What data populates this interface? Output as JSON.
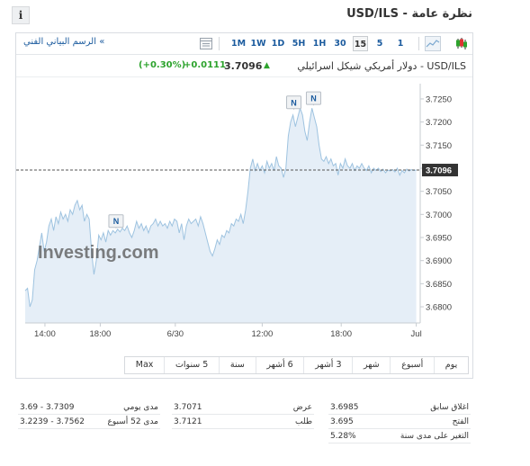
{
  "header": {
    "title": "نظرة عامة - USD/ILS",
    "info_symbol": "i"
  },
  "toolbar": {
    "advanced_chart_label": "الرسم البياني الفني",
    "advanced_chart_chevron": "»",
    "timeframes": [
      "1M",
      "1W",
      "1D",
      "5H",
      "1H",
      "30",
      "15",
      "5",
      "1"
    ],
    "active_timeframe": "15",
    "icons": [
      "table-icon",
      "area-chart-icon",
      "candlestick-icon"
    ]
  },
  "quote": {
    "name": "USD/ILS - دولار أمريكي شيكل اسرائيلي",
    "price": "3.7096",
    "change": "+0.0111",
    "change_pct": "(+0.30%)",
    "direction": "up",
    "up_color": "#2da32d"
  },
  "chart_data": {
    "type": "area",
    "title": "",
    "xlabel": "",
    "ylabel": "",
    "ylim": [
      3.6765,
      3.7283
    ],
    "xlim": [
      0,
      100
    ],
    "x_ticks": [
      {
        "label": "14:00",
        "x": 5
      },
      {
        "label": "18:00",
        "x": 19
      },
      {
        "label": "6/30",
        "x": 38
      },
      {
        "label": "12:00",
        "x": 60
      },
      {
        "label": "18:00",
        "x": 80
      },
      {
        "label": "Jul",
        "x": 99
      }
    ],
    "y_ticks": [
      "3.7250",
      "3.7200",
      "3.7150",
      "3.7100",
      "3.7050",
      "3.7000",
      "3.6950",
      "3.6900",
      "3.6850",
      "3.6800"
    ],
    "current_value": 3.7096,
    "current_label": "3.7096",
    "line_color": "#9ec3e0",
    "fill_color": "#e5eef7",
    "markers": [
      {
        "label": "N",
        "x": 23,
        "y": 3.697
      },
      {
        "label": "N",
        "x": 68,
        "y": 3.7227
      },
      {
        "label": "N",
        "x": 73,
        "y": 3.7236
      }
    ],
    "watermark": "Investing.com",
    "series": [
      {
        "values": [
          [
            0,
            3.6835
          ],
          [
            0.6,
            3.684
          ],
          [
            1.2,
            3.68
          ],
          [
            1.8,
            3.6815
          ],
          [
            2.4,
            3.688
          ],
          [
            3.0,
            3.69
          ],
          [
            3.6,
            3.693
          ],
          [
            4.2,
            3.696
          ],
          [
            4.8,
            3.692
          ],
          [
            5.4,
            3.694
          ],
          [
            6.0,
            3.6975
          ],
          [
            6.6,
            3.699
          ],
          [
            7.2,
            3.6965
          ],
          [
            7.8,
            3.6995
          ],
          [
            8.4,
            3.698
          ],
          [
            9.0,
            3.7005
          ],
          [
            9.6,
            3.699
          ],
          [
            10.2,
            3.7
          ],
          [
            10.8,
            3.6985
          ],
          [
            11.4,
            3.701
          ],
          [
            12.0,
            3.7
          ],
          [
            12.6,
            3.702
          ],
          [
            13.2,
            3.703
          ],
          [
            13.8,
            3.701
          ],
          [
            14.4,
            3.702
          ],
          [
            15.0,
            3.6985
          ],
          [
            15.6,
            3.7
          ],
          [
            16.2,
            3.699
          ],
          [
            16.8,
            3.692
          ],
          [
            17.4,
            3.687
          ],
          [
            18.0,
            3.69
          ],
          [
            18.6,
            3.6955
          ],
          [
            19.2,
            3.6945
          ],
          [
            19.8,
            3.696
          ],
          [
            20.4,
            3.694
          ],
          [
            21.0,
            3.6965
          ],
          [
            21.6,
            3.6955
          ],
          [
            22.2,
            3.6965
          ],
          [
            22.8,
            3.696
          ],
          [
            23.4,
            3.6968
          ],
          [
            24.0,
            3.6962
          ],
          [
            24.6,
            3.697
          ],
          [
            25.2,
            3.6965
          ],
          [
            25.8,
            3.6975
          ],
          [
            26.4,
            3.696
          ],
          [
            27.0,
            3.695
          ],
          [
            27.6,
            3.6965
          ],
          [
            28.2,
            3.6985
          ],
          [
            28.8,
            3.697
          ],
          [
            29.4,
            3.698
          ],
          [
            30.0,
            3.6965
          ],
          [
            30.6,
            3.6975
          ],
          [
            31.2,
            3.696
          ],
          [
            31.8,
            3.6975
          ],
          [
            32.4,
            3.698
          ],
          [
            33.0,
            3.699
          ],
          [
            33.6,
            3.6975
          ],
          [
            34.2,
            3.6985
          ],
          [
            34.8,
            3.6975
          ],
          [
            35.4,
            3.698
          ],
          [
            36.0,
            3.697
          ],
          [
            36.6,
            3.6985
          ],
          [
            37.2,
            3.6975
          ],
          [
            37.8,
            3.699
          ],
          [
            38.4,
            3.6985
          ],
          [
            39.0,
            3.696
          ],
          [
            39.6,
            3.698
          ],
          [
            40.2,
            3.6945
          ],
          [
            40.8,
            3.6975
          ],
          [
            41.4,
            3.699
          ],
          [
            42.0,
            3.698
          ],
          [
            42.6,
            3.6985
          ],
          [
            43.2,
            3.699
          ],
          [
            43.8,
            3.6975
          ],
          [
            44.4,
            3.6995
          ],
          [
            45.0,
            3.698
          ],
          [
            45.6,
            3.696
          ],
          [
            46.2,
            3.694
          ],
          [
            46.8,
            3.692
          ],
          [
            47.4,
            3.691
          ],
          [
            48.0,
            3.6925
          ],
          [
            48.6,
            3.6945
          ],
          [
            49.2,
            3.6935
          ],
          [
            49.8,
            3.6955
          ],
          [
            50.4,
            3.695
          ],
          [
            51.0,
            3.6965
          ],
          [
            51.6,
            3.696
          ],
          [
            52.2,
            3.698
          ],
          [
            52.8,
            3.6975
          ],
          [
            53.4,
            3.699
          ],
          [
            54.0,
            3.6985
          ],
          [
            54.6,
            3.7
          ],
          [
            55.2,
            3.698
          ],
          [
            55.8,
            3.701
          ],
          [
            56.4,
            3.705
          ],
          [
            57.0,
            3.71
          ],
          [
            57.6,
            3.712
          ],
          [
            58.2,
            3.7095
          ],
          [
            58.8,
            3.711
          ],
          [
            59.4,
            3.7095
          ],
          [
            60.0,
            3.7105
          ],
          [
            60.6,
            3.709
          ],
          [
            61.2,
            3.7115
          ],
          [
            61.8,
            3.71
          ],
          [
            62.4,
            3.711
          ],
          [
            63.0,
            3.7095
          ],
          [
            63.6,
            3.7125
          ],
          [
            64.2,
            3.7105
          ],
          [
            64.8,
            3.71
          ],
          [
            65.4,
            3.708
          ],
          [
            66.0,
            3.71
          ],
          [
            66.6,
            3.717
          ],
          [
            67.2,
            3.72
          ],
          [
            67.8,
            3.7215
          ],
          [
            68.4,
            3.719
          ],
          [
            69.0,
            3.721
          ],
          [
            69.6,
            3.723
          ],
          [
            70.2,
            3.7215
          ],
          [
            70.8,
            3.718
          ],
          [
            71.4,
            3.716
          ],
          [
            72.0,
            3.72
          ],
          [
            72.6,
            3.723
          ],
          [
            73.2,
            3.721
          ],
          [
            73.8,
            3.719
          ],
          [
            74.4,
            3.715
          ],
          [
            75.0,
            3.712
          ],
          [
            75.6,
            3.7115
          ],
          [
            76.2,
            3.7125
          ],
          [
            76.8,
            3.711
          ],
          [
            77.4,
            3.712
          ],
          [
            78.0,
            3.7105
          ],
          [
            78.6,
            3.711
          ],
          [
            79.2,
            3.7085
          ],
          [
            79.8,
            3.711
          ],
          [
            80.4,
            3.71
          ],
          [
            81.0,
            3.712
          ],
          [
            81.6,
            3.7105
          ],
          [
            82.2,
            3.71
          ],
          [
            82.8,
            3.711
          ],
          [
            83.4,
            3.7095
          ],
          [
            84.0,
            3.7105
          ],
          [
            84.6,
            3.71
          ],
          [
            85.2,
            3.711
          ],
          [
            85.8,
            3.71
          ],
          [
            86.4,
            3.7095
          ],
          [
            87.0,
            3.7105
          ],
          [
            87.6,
            3.709
          ],
          [
            88.2,
            3.71
          ],
          [
            88.8,
            3.7095
          ],
          [
            89.4,
            3.71
          ],
          [
            90.0,
            3.7093
          ],
          [
            90.6,
            3.7098
          ],
          [
            91.2,
            3.709
          ],
          [
            91.8,
            3.7096
          ],
          [
            92.4,
            3.7094
          ],
          [
            93.0,
            3.7097
          ],
          [
            93.6,
            3.7092
          ],
          [
            94.2,
            3.71
          ],
          [
            94.8,
            3.7085
          ],
          [
            95.4,
            3.7095
          ],
          [
            96.0,
            3.709
          ],
          [
            96.6,
            3.7098
          ],
          [
            97.2,
            3.7094
          ],
          [
            97.8,
            3.7097
          ],
          [
            98.4,
            3.7095
          ],
          [
            99.0,
            3.7096
          ]
        ]
      }
    ],
    "grid": false,
    "legend": "none"
  },
  "periods": [
    "يوم",
    "أسبوع",
    "شهر",
    "3 أشهر",
    "6 أشهر",
    "سنة",
    "5 سنوات",
    "Max"
  ],
  "stats": {
    "col1": [
      {
        "label": "مدى يومي",
        "value": "3.69 - 3.7309"
      },
      {
        "label": "مدى 52 أسبوع",
        "value": "3.2239 - 3.7562"
      }
    ],
    "col2": [
      {
        "label": "عرض",
        "value": "3.7071"
      },
      {
        "label": "طلب",
        "value": "3.7121"
      }
    ],
    "col3": [
      {
        "label": "اغلاق سابق",
        "value": "3.6985"
      },
      {
        "label": "الفتح",
        "value": "3.695"
      },
      {
        "label": "التغير على مدى سنة",
        "value": "5.28%"
      }
    ]
  }
}
